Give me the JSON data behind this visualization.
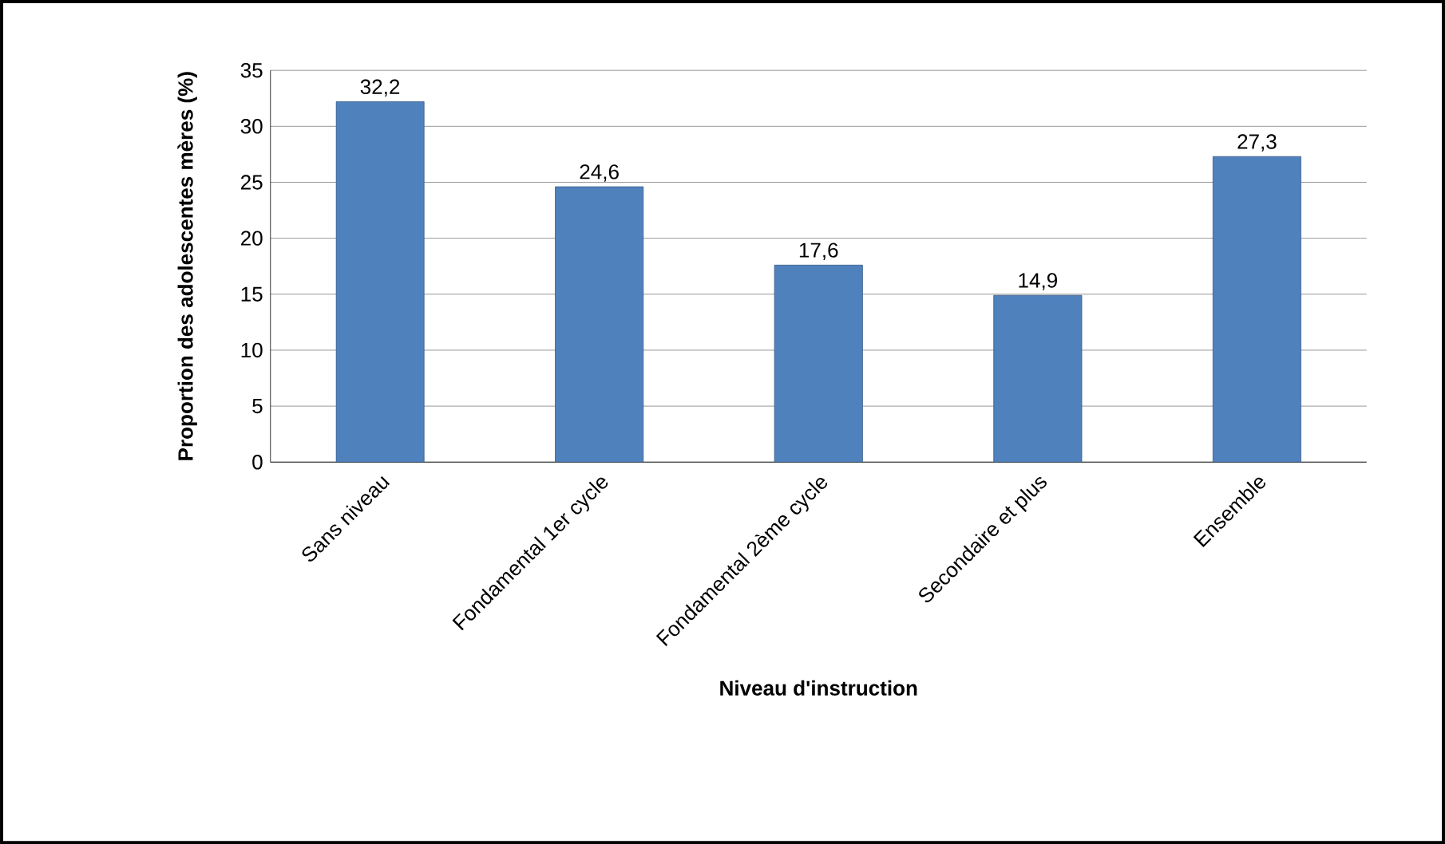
{
  "chart_data": {
    "type": "bar",
    "xlabel": "Niveau d'instruction",
    "ylabel": "Proportion des adolescentes mères (%)",
    "categories": [
      "Sans niveau",
      "Fondamental 1er cycle",
      "Fondamental 2ème cycle",
      "Secondaire et plus",
      "Ensemble"
    ],
    "values": [
      32.2,
      24.6,
      17.6,
      14.9,
      27.3
    ],
    "value_labels": [
      "32,2",
      "24,6",
      "17,6",
      "14,9",
      "27,3"
    ],
    "color": "#4f81bd",
    "ylim": [
      0,
      35
    ],
    "yticks": [
      0,
      5,
      10,
      15,
      20,
      25,
      30,
      35
    ],
    "grid": "y"
  }
}
